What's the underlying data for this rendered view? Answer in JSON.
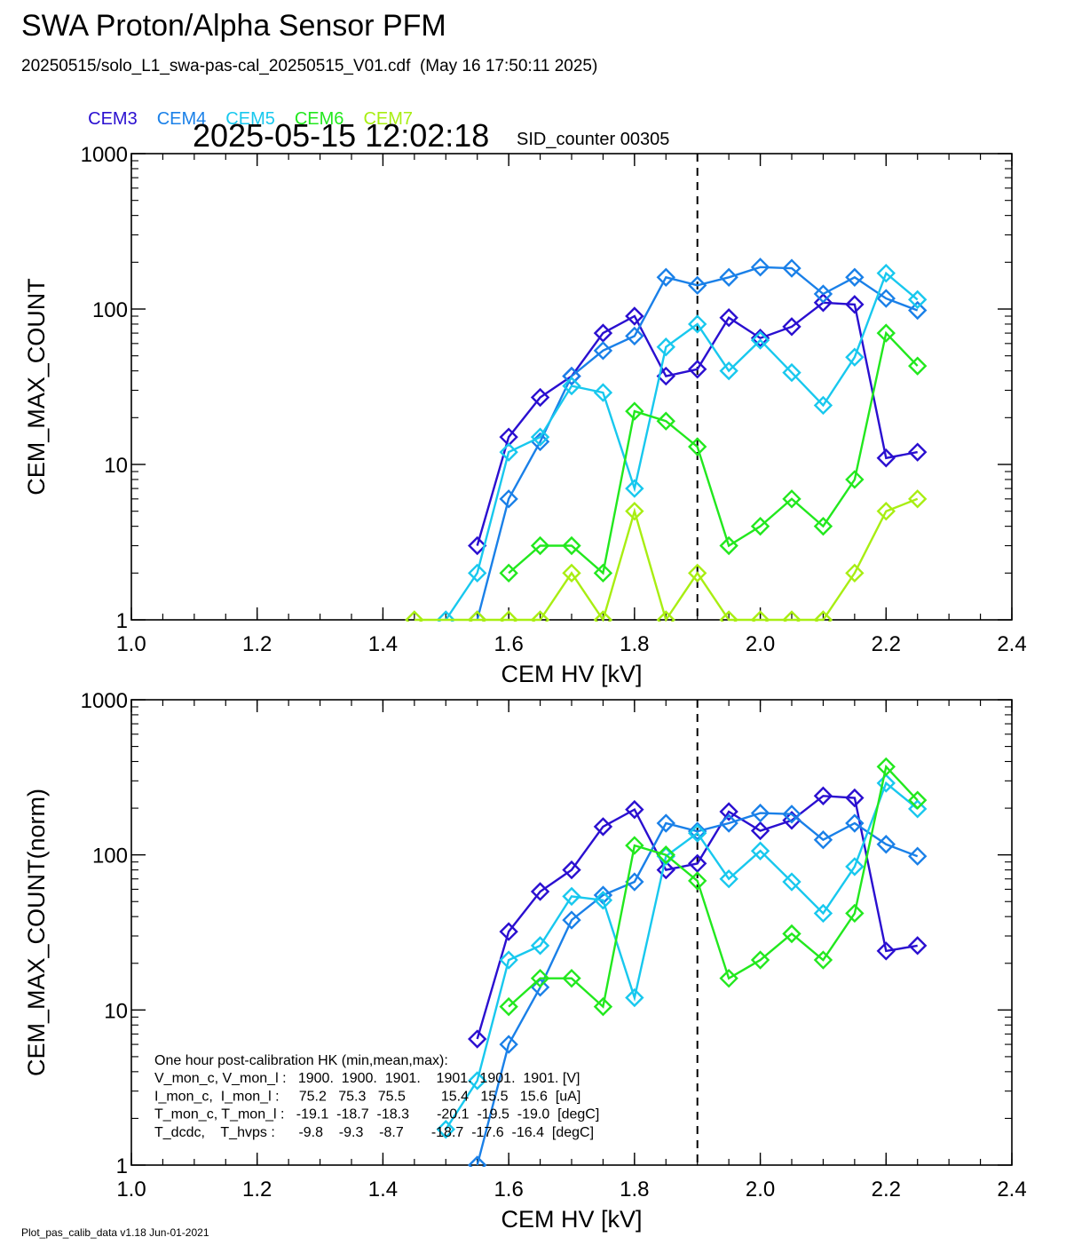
{
  "header": {
    "title": "SWA Proton/Alpha Sensor PFM",
    "subtitle": "20250515/solo_L1_swa-pas-cal_20250515_V01.cdf  (May 16 17:50:11 2025)",
    "timestamp": "2025-05-15 12:02:18",
    "sid": "SID_counter 00305"
  },
  "legend": [
    {
      "name": "CEM3",
      "color": "#2a0fd0"
    },
    {
      "name": "CEM4",
      "color": "#1a80e8"
    },
    {
      "name": "CEM5",
      "color": "#18c8ee"
    },
    {
      "name": "CEM6",
      "color": "#22e81e"
    },
    {
      "name": "CEM7",
      "color": "#a8ee12"
    }
  ],
  "footer": "Plot_pas_calib_data v1.18 Jun-01-2021",
  "hk_text": [
    "One hour post-calibration HK (min,mean,max):",
    "V_mon_c, V_mon_l :   1900.  1900.  1901.    1901.  1901.  1901. [V]",
    "I_mon_c,  I_mon_l :     75.2   75.3   75.5         15.4   15.5   15.6  [uA]",
    "T_mon_c, T_mon_l :   -19.1  -18.7  -18.3       -20.1  -19.5  -19.0  [degC]",
    "T_dcdc,    T_hvps :      -9.8    -9.3    -8.7       -18.7  -17.6  -16.4  [degC]"
  ],
  "chart_data": [
    {
      "type": "line",
      "xlabel": "CEM HV [kV]",
      "ylabel": "CEM_MAX_COUNT",
      "xlim": [
        1.0,
        2.4
      ],
      "ylim": [
        1,
        1000
      ],
      "yscale": "log",
      "xticks": [
        "1.0",
        "1.2",
        "1.4",
        "1.6",
        "1.8",
        "2.0",
        "2.2",
        "2.4"
      ],
      "yticks": [
        "1",
        "10",
        "100",
        "1000"
      ],
      "vline": 1.9,
      "series": [
        {
          "name": "CEM3",
          "x": [
            1.55,
            1.6,
            1.65,
            1.7,
            1.75,
            1.8,
            1.85,
            1.9,
            1.95,
            2.0,
            2.05,
            2.1,
            2.15,
            2.2,
            2.25
          ],
          "values": [
            3,
            15,
            27,
            37,
            70,
            90,
            37,
            41,
            88,
            65,
            77,
            110,
            107,
            11,
            12
          ]
        },
        {
          "name": "CEM4",
          "x": [
            1.55,
            1.6,
            1.65,
            1.7,
            1.75,
            1.8,
            1.85,
            1.9,
            1.95,
            2.0,
            2.05,
            2.1,
            2.15,
            2.2,
            2.25
          ],
          "values": [
            1,
            6,
            14,
            37,
            54,
            67,
            160,
            142,
            160,
            186,
            183,
            125,
            160,
            117,
            98
          ]
        },
        {
          "name": "CEM5",
          "x": [
            1.5,
            1.55,
            1.6,
            1.65,
            1.7,
            1.75,
            1.8,
            1.85,
            1.9,
            1.95,
            2.0,
            2.05,
            2.1,
            2.15,
            2.2,
            2.25
          ],
          "values": [
            1,
            2,
            12,
            15,
            32,
            29,
            7,
            57,
            80,
            40,
            63,
            39,
            24,
            49,
            170,
            115
          ]
        },
        {
          "name": "CEM6",
          "x": [
            1.6,
            1.65,
            1.7,
            1.75,
            1.8,
            1.85,
            1.9,
            1.95,
            2.0,
            2.05,
            2.1,
            2.15,
            2.2,
            2.25
          ],
          "values": [
            2,
            3,
            3,
            2,
            22,
            19,
            13,
            3,
            4,
            6,
            4,
            8,
            70,
            43
          ]
        },
        {
          "name": "CEM7",
          "x": [
            1.45,
            1.55,
            1.6,
            1.65,
            1.7,
            1.75,
            1.8,
            1.85,
            1.9,
            1.95,
            2.0,
            2.05,
            2.1,
            2.15,
            2.2,
            2.25
          ],
          "values": [
            1,
            1,
            1,
            1,
            2,
            1,
            5,
            1,
            2,
            1,
            1,
            1,
            1,
            2,
            5,
            6
          ]
        }
      ]
    },
    {
      "type": "line",
      "xlabel": "CEM HV [kV]",
      "ylabel": "CEM_MAX_COUNT(norm)",
      "xlim": [
        1.0,
        2.4
      ],
      "ylim": [
        1,
        1000
      ],
      "yscale": "log",
      "xticks": [
        "1.0",
        "1.2",
        "1.4",
        "1.6",
        "1.8",
        "2.0",
        "2.2",
        "2.4"
      ],
      "yticks": [
        "1",
        "10",
        "100",
        "1000"
      ],
      "vline": 1.9,
      "series": [
        {
          "name": "CEM3",
          "x": [
            1.55,
            1.6,
            1.65,
            1.7,
            1.75,
            1.8,
            1.85,
            1.9,
            1.95,
            2.0,
            2.05,
            2.1,
            2.15,
            2.2,
            2.25
          ],
          "values": [
            6.5,
            32,
            58,
            80,
            152,
            196,
            80,
            88,
            190,
            143,
            167,
            240,
            233,
            24,
            26
          ]
        },
        {
          "name": "CEM4",
          "x": [
            1.55,
            1.6,
            1.65,
            1.7,
            1.75,
            1.8,
            1.85,
            1.9,
            1.95,
            2.0,
            2.05,
            2.1,
            2.15,
            2.2,
            2.25
          ],
          "values": [
            1,
            6,
            14,
            38,
            55,
            67,
            160,
            142,
            160,
            186,
            183,
            125,
            160,
            117,
            98
          ]
        },
        {
          "name": "CEM5",
          "x": [
            1.5,
            1.55,
            1.6,
            1.65,
            1.7,
            1.75,
            1.8,
            1.85,
            1.9,
            1.95,
            2.0,
            2.05,
            2.1,
            2.15,
            2.2,
            2.25
          ],
          "values": [
            1.7,
            3.5,
            21,
            26,
            54,
            51,
            12,
            98,
            138,
            70,
            106,
            67,
            42,
            84,
            290,
            198
          ]
        },
        {
          "name": "CEM6",
          "x": [
            1.6,
            1.65,
            1.7,
            1.75,
            1.8,
            1.85,
            1.9,
            1.95,
            2.0,
            2.05,
            2.1,
            2.15,
            2.2,
            2.25
          ],
          "values": [
            10.5,
            16,
            16,
            10.5,
            115,
            100,
            68,
            16,
            21,
            31,
            21,
            42,
            370,
            225
          ]
        }
      ]
    }
  ]
}
